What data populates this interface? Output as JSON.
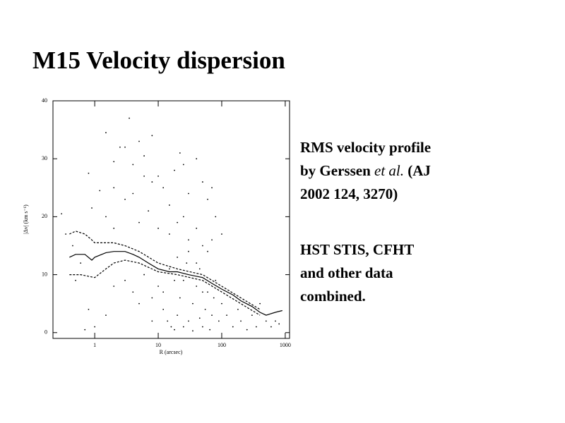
{
  "header": {
    "title": "M15 Velocity dispersion"
  },
  "chart_data": {
    "type": "scatter",
    "color": "#000000",
    "xscale": "log",
    "xlabel": "R (arcsec)",
    "ylabel": "|Δv| (km s⁻¹)",
    "xlim": [
      0.22,
      1170
    ],
    "ylim": [
      -1,
      40
    ],
    "xticks": [
      1,
      10,
      100,
      1000
    ],
    "yticks": [
      0,
      10,
      20,
      30,
      40
    ],
    "x": [
      0.3,
      0.35,
      0.45,
      0.5,
      0.6,
      0.8,
      0.9,
      0.8,
      1.2,
      1.5,
      2,
      2.5,
      3,
      3.5,
      4,
      5,
      6,
      8,
      2,
      3,
      1.5,
      2,
      4,
      6,
      8,
      10,
      12,
      15,
      18,
      22,
      25,
      30,
      40,
      50,
      60,
      70,
      80,
      5,
      7,
      10,
      15,
      20,
      25,
      30,
      40,
      50,
      60,
      70,
      100,
      2,
      3,
      4,
      5,
      6,
      8,
      10,
      12,
      14,
      16,
      18,
      20,
      22,
      25,
      28,
      30,
      35,
      40,
      45,
      50,
      55,
      60,
      65,
      70,
      75,
      80,
      90,
      100,
      120,
      150,
      180,
      200,
      250,
      300,
      350,
      400,
      500,
      600,
      700,
      800,
      1,
      1.5,
      0.7,
      20,
      30,
      40,
      15,
      50,
      25,
      35,
      45,
      8,
      12,
      18
    ],
    "y": [
      20.5,
      17,
      15,
      9,
      12,
      27.5,
      21.5,
      4,
      24.5,
      34.5,
      29.5,
      32,
      32,
      37,
      29,
      33,
      30.5,
      34,
      25,
      23,
      20,
      18,
      24,
      27,
      26,
      27,
      25,
      22,
      28,
      31,
      29,
      24,
      30,
      26,
      23,
      25,
      20,
      19,
      21,
      18,
      17,
      19,
      20,
      16,
      18,
      15,
      14,
      16,
      17,
      8,
      9,
      7,
      5,
      10,
      6,
      8,
      4,
      2,
      1,
      0.5,
      3,
      6,
      9,
      12,
      2,
      5,
      8,
      11,
      1,
      4,
      7,
      0.5,
      3,
      6,
      9,
      2,
      5,
      3,
      1,
      4,
      2,
      0.5,
      3,
      1,
      5,
      2,
      1,
      2,
      1.5,
      1,
      3,
      0.5,
      13,
      14,
      12,
      11,
      7,
      1,
      0.3,
      2.5,
      2,
      7,
      9
    ],
    "lines": [
      {
        "style": "solid",
        "x": [
          0.4,
          0.5,
          0.7,
          0.9,
          1,
          1.5,
          2,
          3,
          4,
          5,
          7,
          10,
          15,
          20,
          30,
          50,
          70,
          100,
          150,
          200,
          300,
          400,
          500,
          700,
          900
        ],
        "y": [
          13,
          13.5,
          13.5,
          12.5,
          13,
          13.8,
          14,
          14,
          13.5,
          13,
          12,
          11,
          10.5,
          10.5,
          10,
          9.5,
          8.5,
          7.5,
          6.5,
          5.5,
          4.5,
          3.5,
          3,
          3.5,
          3.8
        ]
      },
      {
        "style": "dashed",
        "x": [
          0.4,
          0.5,
          0.7,
          0.9,
          1,
          1.5,
          2,
          3,
          5,
          10,
          20,
          50,
          100,
          200,
          400
        ],
        "y": [
          17,
          17.5,
          17,
          16,
          15.5,
          15.5,
          15.5,
          15,
          14,
          12,
          11,
          10,
          8,
          6,
          4
        ]
      },
      {
        "style": "dashed",
        "x": [
          0.4,
          0.6,
          1,
          1.5,
          2,
          3,
          5,
          10,
          20,
          50,
          100,
          200,
          400
        ],
        "y": [
          10,
          10,
          9.5,
          11,
          12,
          12.5,
          12,
          10.5,
          10,
          9,
          7,
          5,
          3
        ]
      }
    ]
  },
  "text": {
    "paragraphs": [
      [
        "RMS velocity profile",
        "by Gerssen",
        "et al.",
        "(AJ",
        "2002 124, 3270)"
      ],
      [
        "HST STIS, CFHT",
        "and other data",
        "combined."
      ]
    ]
  }
}
